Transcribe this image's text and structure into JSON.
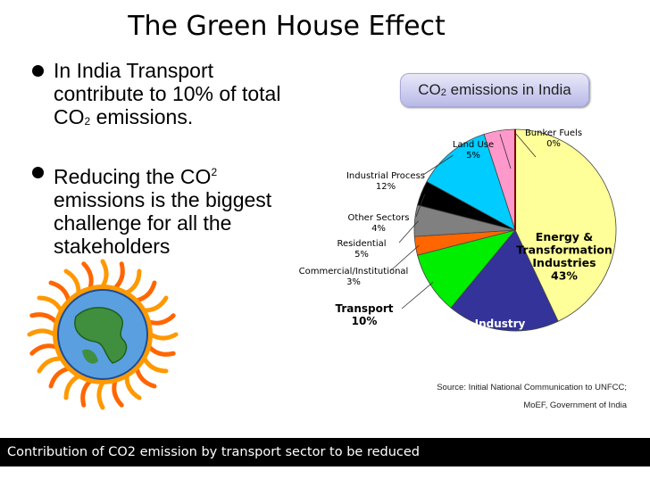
{
  "slide": {
    "title": "The Green House Effect",
    "bullet1": {
      "line1": "In India Transport",
      "line2": "contribute to 10% of total",
      "line3_pre": "CO",
      "line3_sub": "2",
      "line3_post": " emissions."
    },
    "bullet2": {
      "line1_pre": "Reducing the CO",
      "line1_sup": "2",
      "line2": "emissions is the biggest",
      "line3": "challenge for all the",
      "line4": "stakeholders"
    },
    "badge": {
      "pre": "CO",
      "sub": "2",
      "post": " emissions in India"
    },
    "source_line1": "Source: Initial National Communication to UNFCC;",
    "source_line2": "MoEF, Government of India",
    "footer": "Contribution of CO2 emission by transport sector to be reduced"
  },
  "chart_data": {
    "type": "pie",
    "title": "CO2 emissions in India",
    "slices": [
      {
        "label": "Energy & Transformation Industries",
        "label_lines": [
          "Energy &",
          "Transformation",
          "Industries"
        ],
        "value": 43,
        "value_text": "43%",
        "color": "#ffff99"
      },
      {
        "label": "Industry",
        "label_lines": [
          "Industry"
        ],
        "value": 18,
        "value_text": "18%",
        "color": "#333399"
      },
      {
        "label": "Transport",
        "label_lines": [
          "Transport"
        ],
        "value": 10,
        "value_text": "10%",
        "color": "#00ee00"
      },
      {
        "label": "Commercial/Institutional",
        "label_lines": [
          "Commercial/Institutional"
        ],
        "value": 3,
        "value_text": "3%",
        "color": "#ff6600"
      },
      {
        "label": "Residential",
        "label_lines": [
          "Residential"
        ],
        "value": 5,
        "value_text": "5%",
        "color": "#808080"
      },
      {
        "label": "Other Sectors",
        "label_lines": [
          "Other Sectors"
        ],
        "value": 4,
        "value_text": "4%",
        "color": "#000000"
      },
      {
        "label": "Industrial Process",
        "label_lines": [
          "Industrial Process"
        ],
        "value": 12,
        "value_text": "12%",
        "color": "#00ccff"
      },
      {
        "label": "Land Use",
        "label_lines": [
          "Land Use"
        ],
        "value": 5,
        "value_text": "5%",
        "color": "#ff99cc"
      },
      {
        "label": "Bunker Fuels",
        "label_lines": [
          "Bunker Fuels"
        ],
        "value": 0,
        "value_text": "0%",
        "color": "#800000"
      }
    ]
  }
}
